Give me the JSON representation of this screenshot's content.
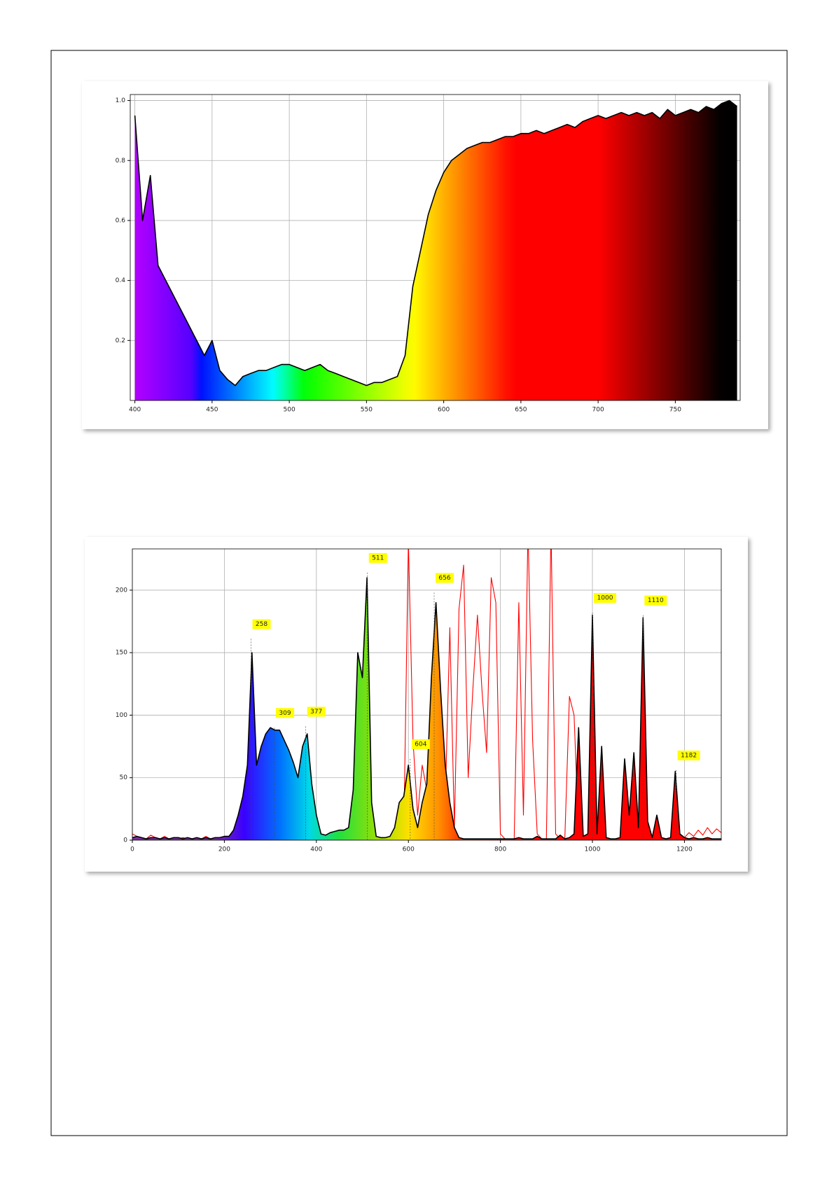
{
  "chart_data": [
    {
      "type": "line",
      "grid": true,
      "x": [
        400,
        405,
        410,
        415,
        420,
        425,
        430,
        435,
        440,
        445,
        450,
        455,
        460,
        465,
        470,
        475,
        480,
        485,
        490,
        495,
        500,
        505,
        510,
        515,
        520,
        525,
        530,
        535,
        540,
        545,
        550,
        555,
        560,
        565,
        570,
        575,
        580,
        585,
        590,
        595,
        600,
        605,
        610,
        615,
        620,
        625,
        630,
        635,
        640,
        645,
        650,
        655,
        660,
        665,
        670,
        675,
        680,
        685,
        690,
        695,
        700,
        705,
        710,
        715,
        720,
        725,
        730,
        735,
        740,
        745,
        750,
        755,
        760,
        765,
        770,
        775,
        780,
        785,
        790
      ],
      "series": [
        {
          "color": "#000000",
          "area": true,
          "values": [
            0.95,
            0.6,
            0.75,
            0.45,
            0.4,
            0.35,
            0.3,
            0.25,
            0.2,
            0.15,
            0.2,
            0.1,
            0.07,
            0.05,
            0.08,
            0.09,
            0.1,
            0.1,
            0.11,
            0.12,
            0.12,
            0.11,
            0.1,
            0.11,
            0.12,
            0.1,
            0.09,
            0.08,
            0.07,
            0.06,
            0.05,
            0.06,
            0.06,
            0.07,
            0.08,
            0.15,
            0.38,
            0.5,
            0.62,
            0.7,
            0.76,
            0.8,
            0.82,
            0.84,
            0.85,
            0.86,
            0.86,
            0.87,
            0.88,
            0.88,
            0.89,
            0.89,
            0.9,
            0.89,
            0.9,
            0.91,
            0.92,
            0.91,
            0.93,
            0.94,
            0.95,
            0.94,
            0.95,
            0.96,
            0.95,
            0.96,
            0.95,
            0.96,
            0.94,
            0.97,
            0.95,
            0.96,
            0.97,
            0.96,
            0.98,
            0.97,
            0.99,
            1.0,
            0.98
          ]
        }
      ],
      "xlim": [
        397,
        792
      ],
      "ylim": [
        0,
        1.02
      ],
      "xticks": [
        400,
        450,
        500,
        550,
        600,
        650,
        700,
        750
      ],
      "yticks": [
        0.2,
        0.4,
        0.6,
        0.8,
        {
          "value": 1,
          "label": "1.0"
        }
      ]
    },
    {
      "type": "line",
      "grid": true,
      "x": [
        0,
        10,
        20,
        30,
        40,
        50,
        60,
        70,
        80,
        90,
        100,
        110,
        120,
        130,
        140,
        150,
        160,
        170,
        180,
        190,
        200,
        210,
        220,
        230,
        240,
        250,
        260,
        270,
        280,
        290,
        300,
        310,
        320,
        330,
        340,
        350,
        360,
        370,
        380,
        390,
        400,
        410,
        420,
        430,
        440,
        450,
        460,
        470,
        480,
        490,
        500,
        510,
        520,
        530,
        540,
        550,
        560,
        570,
        580,
        590,
        600,
        610,
        620,
        630,
        640,
        650,
        660,
        670,
        680,
        690,
        700,
        710,
        720,
        730,
        740,
        750,
        760,
        770,
        780,
        790,
        800,
        810,
        820,
        830,
        840,
        850,
        860,
        870,
        880,
        890,
        900,
        910,
        920,
        930,
        940,
        950,
        960,
        970,
        980,
        990,
        1000,
        1010,
        1020,
        1030,
        1040,
        1050,
        1060,
        1070,
        1080,
        1090,
        1100,
        1110,
        1120,
        1130,
        1140,
        1150,
        1160,
        1170,
        1180,
        1190,
        1200,
        1210,
        1220,
        1230,
        1240,
        1250,
        1260,
        1270,
        1280
      ],
      "series": [
        {
          "color": "#ff0000",
          "area": false,
          "values": [
            5,
            3,
            2,
            1,
            4,
            2,
            1,
            3,
            1,
            2,
            1,
            2,
            1,
            1,
            2,
            1,
            3,
            1,
            1,
            2,
            1,
            1,
            1,
            2,
            1,
            1,
            1,
            1,
            1,
            1,
            1,
            2,
            1,
            1,
            1,
            1,
            1,
            1,
            1,
            1,
            1,
            1,
            1,
            1,
            1,
            1,
            1,
            1,
            1,
            1,
            1,
            1,
            1,
            1,
            1,
            1,
            1,
            1,
            1,
            5,
            240,
            80,
            20,
            60,
            40,
            130,
            160,
            90,
            30,
            170,
            10,
            185,
            220,
            50,
            120,
            180,
            120,
            70,
            210,
            190,
            5,
            1,
            1,
            1,
            190,
            20,
            250,
            80,
            5,
            1,
            1,
            250,
            5,
            1,
            1,
            115,
            100,
            5,
            1,
            1,
            1,
            1,
            1,
            1,
            1,
            1,
            1,
            1,
            1,
            1,
            1,
            1,
            1,
            1,
            1,
            1,
            1,
            1,
            1,
            1,
            2,
            6,
            3,
            8,
            4,
            10,
            5,
            9,
            6
          ]
        },
        {
          "color": "#000000",
          "area": true,
          "values": [
            2,
            3,
            2,
            1,
            2,
            2,
            1,
            2,
            1,
            2,
            2,
            1,
            2,
            1,
            2,
            1,
            2,
            1,
            2,
            2,
            3,
            3,
            8,
            20,
            35,
            60,
            150,
            60,
            75,
            85,
            90,
            88,
            88,
            80,
            72,
            62,
            50,
            75,
            85,
            45,
            20,
            5,
            4,
            6,
            7,
            8,
            8,
            10,
            40,
            150,
            130,
            210,
            30,
            3,
            2,
            2,
            3,
            10,
            30,
            35,
            60,
            25,
            10,
            30,
            45,
            130,
            190,
            120,
            60,
            30,
            10,
            2,
            1,
            1,
            1,
            1,
            1,
            1,
            1,
            1,
            1,
            1,
            1,
            1,
            2,
            1,
            1,
            1,
            3,
            1,
            1,
            1,
            1,
            4,
            1,
            2,
            5,
            90,
            3,
            5,
            180,
            5,
            75,
            2,
            1,
            1,
            2,
            65,
            20,
            70,
            10,
            178,
            15,
            2,
            20,
            2,
            1,
            2,
            55,
            5,
            2,
            1,
            2,
            1,
            1,
            2,
            1,
            1,
            1
          ]
        }
      ],
      "peaks": [
        {
          "x": 258,
          "y": 161
        },
        {
          "x": 309,
          "y": 90
        },
        {
          "x": 377,
          "y": 91
        },
        {
          "x": 511,
          "y": 214
        },
        {
          "x": 604,
          "y": 65
        },
        {
          "x": 656,
          "y": 198
        },
        {
          "x": 1000,
          "y": 182
        },
        {
          "x": 1110,
          "y": 180
        },
        {
          "x": 1182,
          "y": 56
        }
      ],
      "xlim": [
        0,
        1280
      ],
      "ylim": [
        0,
        233
      ],
      "xticks": [
        0,
        200,
        400,
        600,
        800,
        1000,
        1200
      ],
      "yticks": [
        0,
        50,
        100,
        150,
        200
      ]
    }
  ]
}
